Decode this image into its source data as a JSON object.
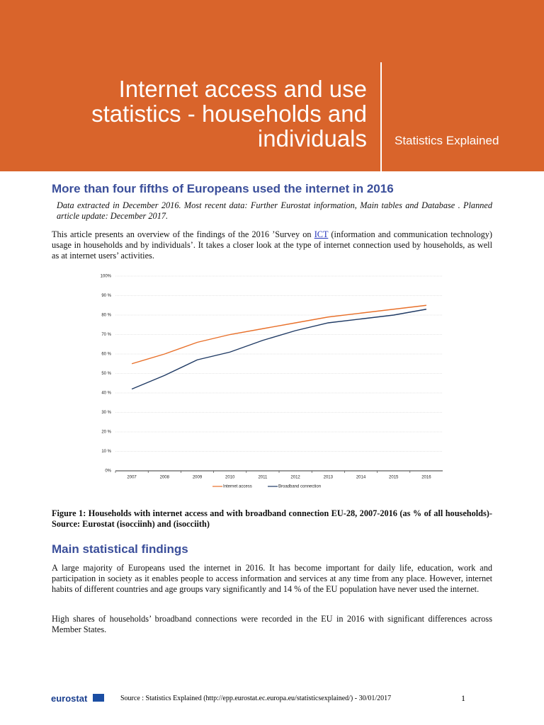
{
  "header": {
    "title": "Internet access and use statistics - households and individuals",
    "subtitle": "Statistics Explained"
  },
  "headline": "More than four fifths of Europeans used the internet in 2016",
  "meta": "Data extracted in December 2016. Most recent data: Further Eurostat information, Main tables and Database . Planned article update: December 2017.",
  "intro": {
    "before": "This article presents an overview of the findings of the 2016 ’Survey on ",
    "link": "ICT",
    "after": " (information and communication technology) usage in households and by individuals’. It takes a closer look at the type of internet connection used by households, as well as at internet users’ activities."
  },
  "figure": {
    "chart": {
      "type": "line",
      "categories": [
        "2007",
        "2008",
        "2009",
        "2010",
        "2011",
        "2012",
        "2013",
        "2014",
        "2015",
        "2016"
      ],
      "series": [
        {
          "name": "Internet access",
          "color": "#e8702a",
          "values": [
            55,
            60,
            66,
            70,
            73,
            76,
            79,
            81,
            83,
            85
          ]
        },
        {
          "name": "Broadband connection",
          "color": "#1f3a64",
          "values": [
            42,
            49,
            57,
            61,
            67,
            72,
            76,
            78,
            80,
            83
          ]
        }
      ],
      "ylim": [
        0,
        100
      ],
      "yticks": [
        {
          "value": 0,
          "label": "0%"
        },
        {
          "value": 10,
          "label": "10 %"
        },
        {
          "value": 20,
          "label": "20 %"
        },
        {
          "value": 30,
          "label": "30 %"
        },
        {
          "value": 40,
          "label": "40 %"
        },
        {
          "value": 50,
          "label": "50 %"
        },
        {
          "value": 60,
          "label": "60 %"
        },
        {
          "value": 70,
          "label": "70 %"
        },
        {
          "value": 80,
          "label": "80 %"
        },
        {
          "value": 90,
          "label": "90 %"
        },
        {
          "value": 100,
          "label": "100%"
        }
      ],
      "grid": true
    },
    "caption": "Figure 1: Households with internet access and with broadband connection EU-28, 2007-2016 (as % of all households)- Source: Eurostat (isocciinh) and (isocciith)"
  },
  "section": {
    "heading": "Main statistical findings",
    "paragraphs": [
      "A large majority of Europeans used the internet in 2016. It has become important for daily life, education, work and participation in society as it enables people to access information and services at any time from any place. However, internet habits of different countries and age groups vary significantly and 14 % of the EU population have never used the internet.",
      "High shares of households’ broadband connections were recorded in the EU in 2016 with significant differences across Member States."
    ]
  },
  "footer": {
    "logo": "eurostat",
    "source": "Source : Statistics Explained (http://epp.eurostat.ec.europa.eu/statisticsexplained/) - 30/01/2017",
    "page": "1"
  }
}
